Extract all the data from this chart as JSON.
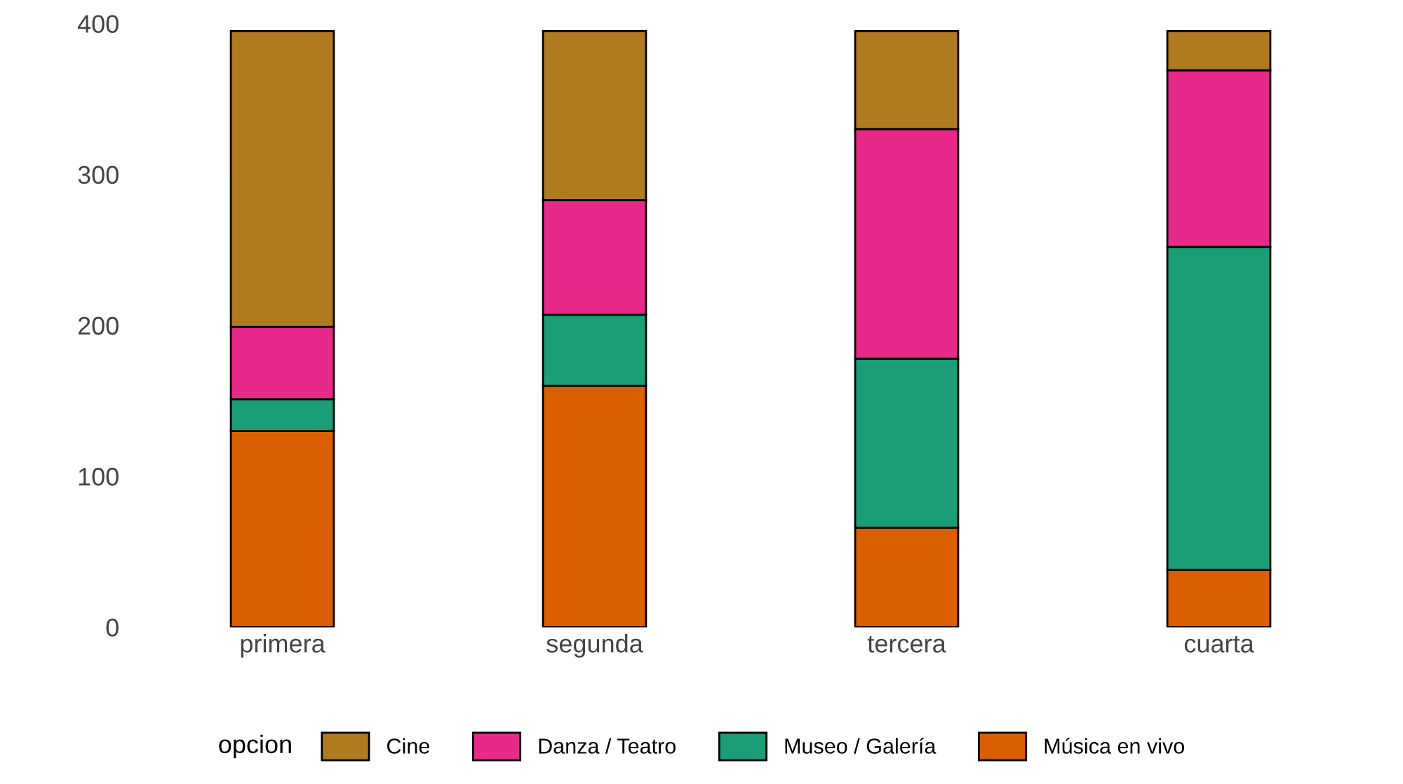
{
  "chart_data": {
    "type": "bar",
    "stacked": true,
    "categories": [
      "primera",
      "segunda",
      "tercera",
      "cuarta"
    ],
    "series": [
      {
        "name": "Música en vivo",
        "color": "#d95f02",
        "values": [
          130,
          160,
          66,
          38
        ]
      },
      {
        "name": "Museo / Galería",
        "color": "#1b9e77",
        "values": [
          21,
          47,
          112,
          214
        ]
      },
      {
        "name": "Danza / Teatro",
        "color": "#e7298a",
        "values": [
          48,
          76,
          152,
          117
        ]
      },
      {
        "name": "Cine",
        "color": "#b07a1f",
        "values": [
          196,
          112,
          65,
          26
        ]
      }
    ],
    "ylim": [
      0,
      400
    ],
    "yticks": [
      0,
      100,
      200,
      300,
      400
    ],
    "grid": false,
    "legend": "bottom",
    "legend_title": "opcion"
  }
}
